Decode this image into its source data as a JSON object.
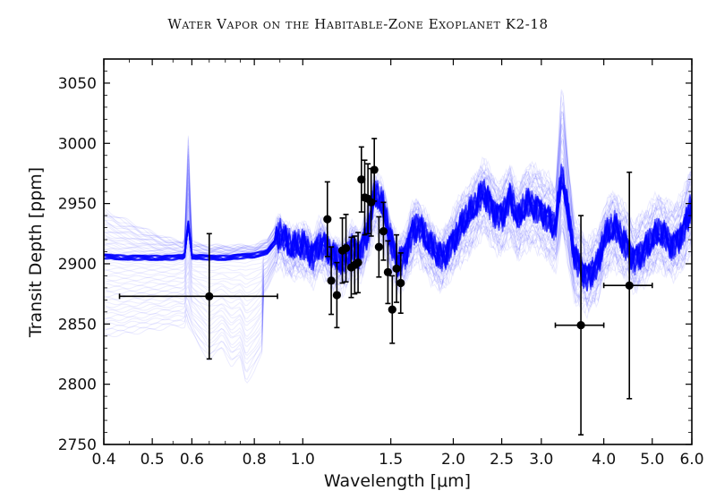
{
  "header": {
    "title": "Water Vapor on the Habitable-Zone Exoplanet K2-18"
  },
  "chart_data": {
    "type": "scatter",
    "title": "",
    "xlabel": "Wavelength [μm]",
    "ylabel": "Transit Depth [ppm]",
    "x_scale": "log",
    "xlim": [
      0.4,
      6.0
    ],
    "ylim": [
      2750,
      3070
    ],
    "x_ticks": [
      0.4,
      0.5,
      0.6,
      0.8,
      1.0,
      1.5,
      2.0,
      2.5,
      3.0,
      4.0,
      5.0,
      6.0
    ],
    "x_tick_labels": [
      "0.4",
      "0.5",
      "0.6",
      "0.8",
      "1.0",
      "1.5",
      "2.0",
      "2.5",
      "3.0",
      "4.0",
      "5.0",
      "6.0"
    ],
    "y_ticks": [
      2750,
      2800,
      2850,
      2900,
      2950,
      3000,
      3050
    ],
    "y_tick_labels": [
      "2750",
      "2800",
      "2850",
      "2900",
      "2950",
      "3000",
      "3050"
    ],
    "model_color": "#0000ff",
    "data_color": "#000000",
    "model_band": {
      "name": "",
      "x": [
        0.4,
        0.45,
        0.5,
        0.55,
        0.58,
        0.59,
        0.6,
        0.65,
        0.7,
        0.75,
        0.8,
        0.85,
        0.88,
        0.9,
        0.95,
        1.0,
        1.05,
        1.08,
        1.12,
        1.15,
        1.2,
        1.25,
        1.3,
        1.35,
        1.38,
        1.4,
        1.45,
        1.5,
        1.55,
        1.6,
        1.65,
        1.7,
        1.8,
        1.9,
        2.0,
        2.1,
        2.2,
        2.3,
        2.4,
        2.5,
        2.6,
        2.7,
        2.8,
        2.9,
        3.0,
        3.1,
        3.2,
        3.3,
        3.4,
        3.5,
        3.7,
        3.9,
        4.0,
        4.2,
        4.4,
        4.6,
        4.8,
        5.0,
        5.2,
        5.5,
        5.8,
        6.0
      ],
      "center": [
        2906,
        2905,
        2905,
        2905,
        2906,
        2935,
        2906,
        2905,
        2905,
        2906,
        2907,
        2910,
        2918,
        2925,
        2912,
        2916,
        2908,
        2918,
        2912,
        2905,
        2900,
        2914,
        2910,
        2928,
        2950,
        2958,
        2945,
        2918,
        2902,
        2908,
        2926,
        2932,
        2914,
        2905,
        2920,
        2935,
        2945,
        2960,
        2946,
        2940,
        2955,
        2935,
        2950,
        2948,
        2945,
        2938,
        2930,
        2975,
        2938,
        2905,
        2890,
        2900,
        2920,
        2930,
        2918,
        2905,
        2910,
        2920,
        2926,
        2915,
        2930,
        2950
      ],
      "low": [
        2840,
        2842,
        2845,
        2848,
        2848,
        2860,
        2850,
        2852,
        2855,
        2858,
        2862,
        2880,
        2895,
        2900,
        2890,
        2893,
        2885,
        2895,
        2888,
        2882,
        2878,
        2890,
        2888,
        2905,
        2920,
        2928,
        2915,
        2892,
        2878,
        2885,
        2898,
        2905,
        2888,
        2880,
        2895,
        2905,
        2915,
        2928,
        2915,
        2910,
        2920,
        2905,
        2915,
        2915,
        2912,
        2905,
        2895,
        2930,
        2900,
        2870,
        2862,
        2872,
        2890,
        2900,
        2890,
        2880,
        2885,
        2895,
        2898,
        2890,
        2900,
        2912
      ],
      "high": [
        2945,
        2935,
        2926,
        2920,
        2918,
        3010,
        2918,
        2915,
        2915,
        2915,
        2915,
        2920,
        2932,
        2938,
        2925,
        2932,
        2922,
        2935,
        2925,
        2918,
        2915,
        2930,
        2925,
        2945,
        2968,
        2975,
        2962,
        2935,
        2918,
        2925,
        2945,
        2952,
        2932,
        2922,
        2942,
        2958,
        2968,
        2985,
        2970,
        2965,
        2980,
        2960,
        2980,
        2978,
        2975,
        2970,
        2960,
        3050,
        2980,
        2935,
        2918,
        2925,
        2945,
        2958,
        2945,
        2932,
        2940,
        2950,
        2955,
        2945,
        2960,
        2980
      ],
      "notch_x": [
        0.59,
        0.62,
        0.65,
        0.69,
        0.72,
        0.75,
        0.77,
        0.8,
        0.83
      ],
      "notch_low": [
        2848,
        2832,
        2820,
        2830,
        2815,
        2822,
        2800,
        2812,
        2825
      ]
    },
    "series": [
      {
        "name": "",
        "points": [
          {
            "x": 0.65,
            "y": 2873,
            "yerr": 52,
            "xlo": 0.43,
            "xhi": 0.89
          },
          {
            "x": 1.12,
            "y": 2937,
            "yerr": 31
          },
          {
            "x": 1.14,
            "y": 2886,
            "yerr": 28
          },
          {
            "x": 1.17,
            "y": 2874,
            "yerr": 27
          },
          {
            "x": 1.2,
            "y": 2911,
            "yerr": 27
          },
          {
            "x": 1.22,
            "y": 2913,
            "yerr": 28
          },
          {
            "x": 1.25,
            "y": 2897,
            "yerr": 25
          },
          {
            "x": 1.27,
            "y": 2899,
            "yerr": 24
          },
          {
            "x": 1.29,
            "y": 2901,
            "yerr": 25
          },
          {
            "x": 1.31,
            "y": 2970,
            "yerr": 27
          },
          {
            "x": 1.33,
            "y": 2955,
            "yerr": 31
          },
          {
            "x": 1.35,
            "y": 2954,
            "yerr": 29
          },
          {
            "x": 1.37,
            "y": 2951,
            "yerr": 28
          },
          {
            "x": 1.39,
            "y": 2978,
            "yerr": 26
          },
          {
            "x": 1.42,
            "y": 2914,
            "yerr": 25
          },
          {
            "x": 1.45,
            "y": 2927,
            "yerr": 24
          },
          {
            "x": 1.48,
            "y": 2893,
            "yerr": 26
          },
          {
            "x": 1.51,
            "y": 2862,
            "yerr": 28
          },
          {
            "x": 1.54,
            "y": 2896,
            "yerr": 28
          },
          {
            "x": 1.57,
            "y": 2884,
            "yerr": 25
          },
          {
            "x": 3.6,
            "y": 2849,
            "yerr": 91,
            "xlo": 3.2,
            "xhi": 4.0
          },
          {
            "x": 4.5,
            "y": 2882,
            "yerr": 94,
            "xlo": 4.0,
            "xhi": 5.0
          }
        ]
      }
    ]
  }
}
